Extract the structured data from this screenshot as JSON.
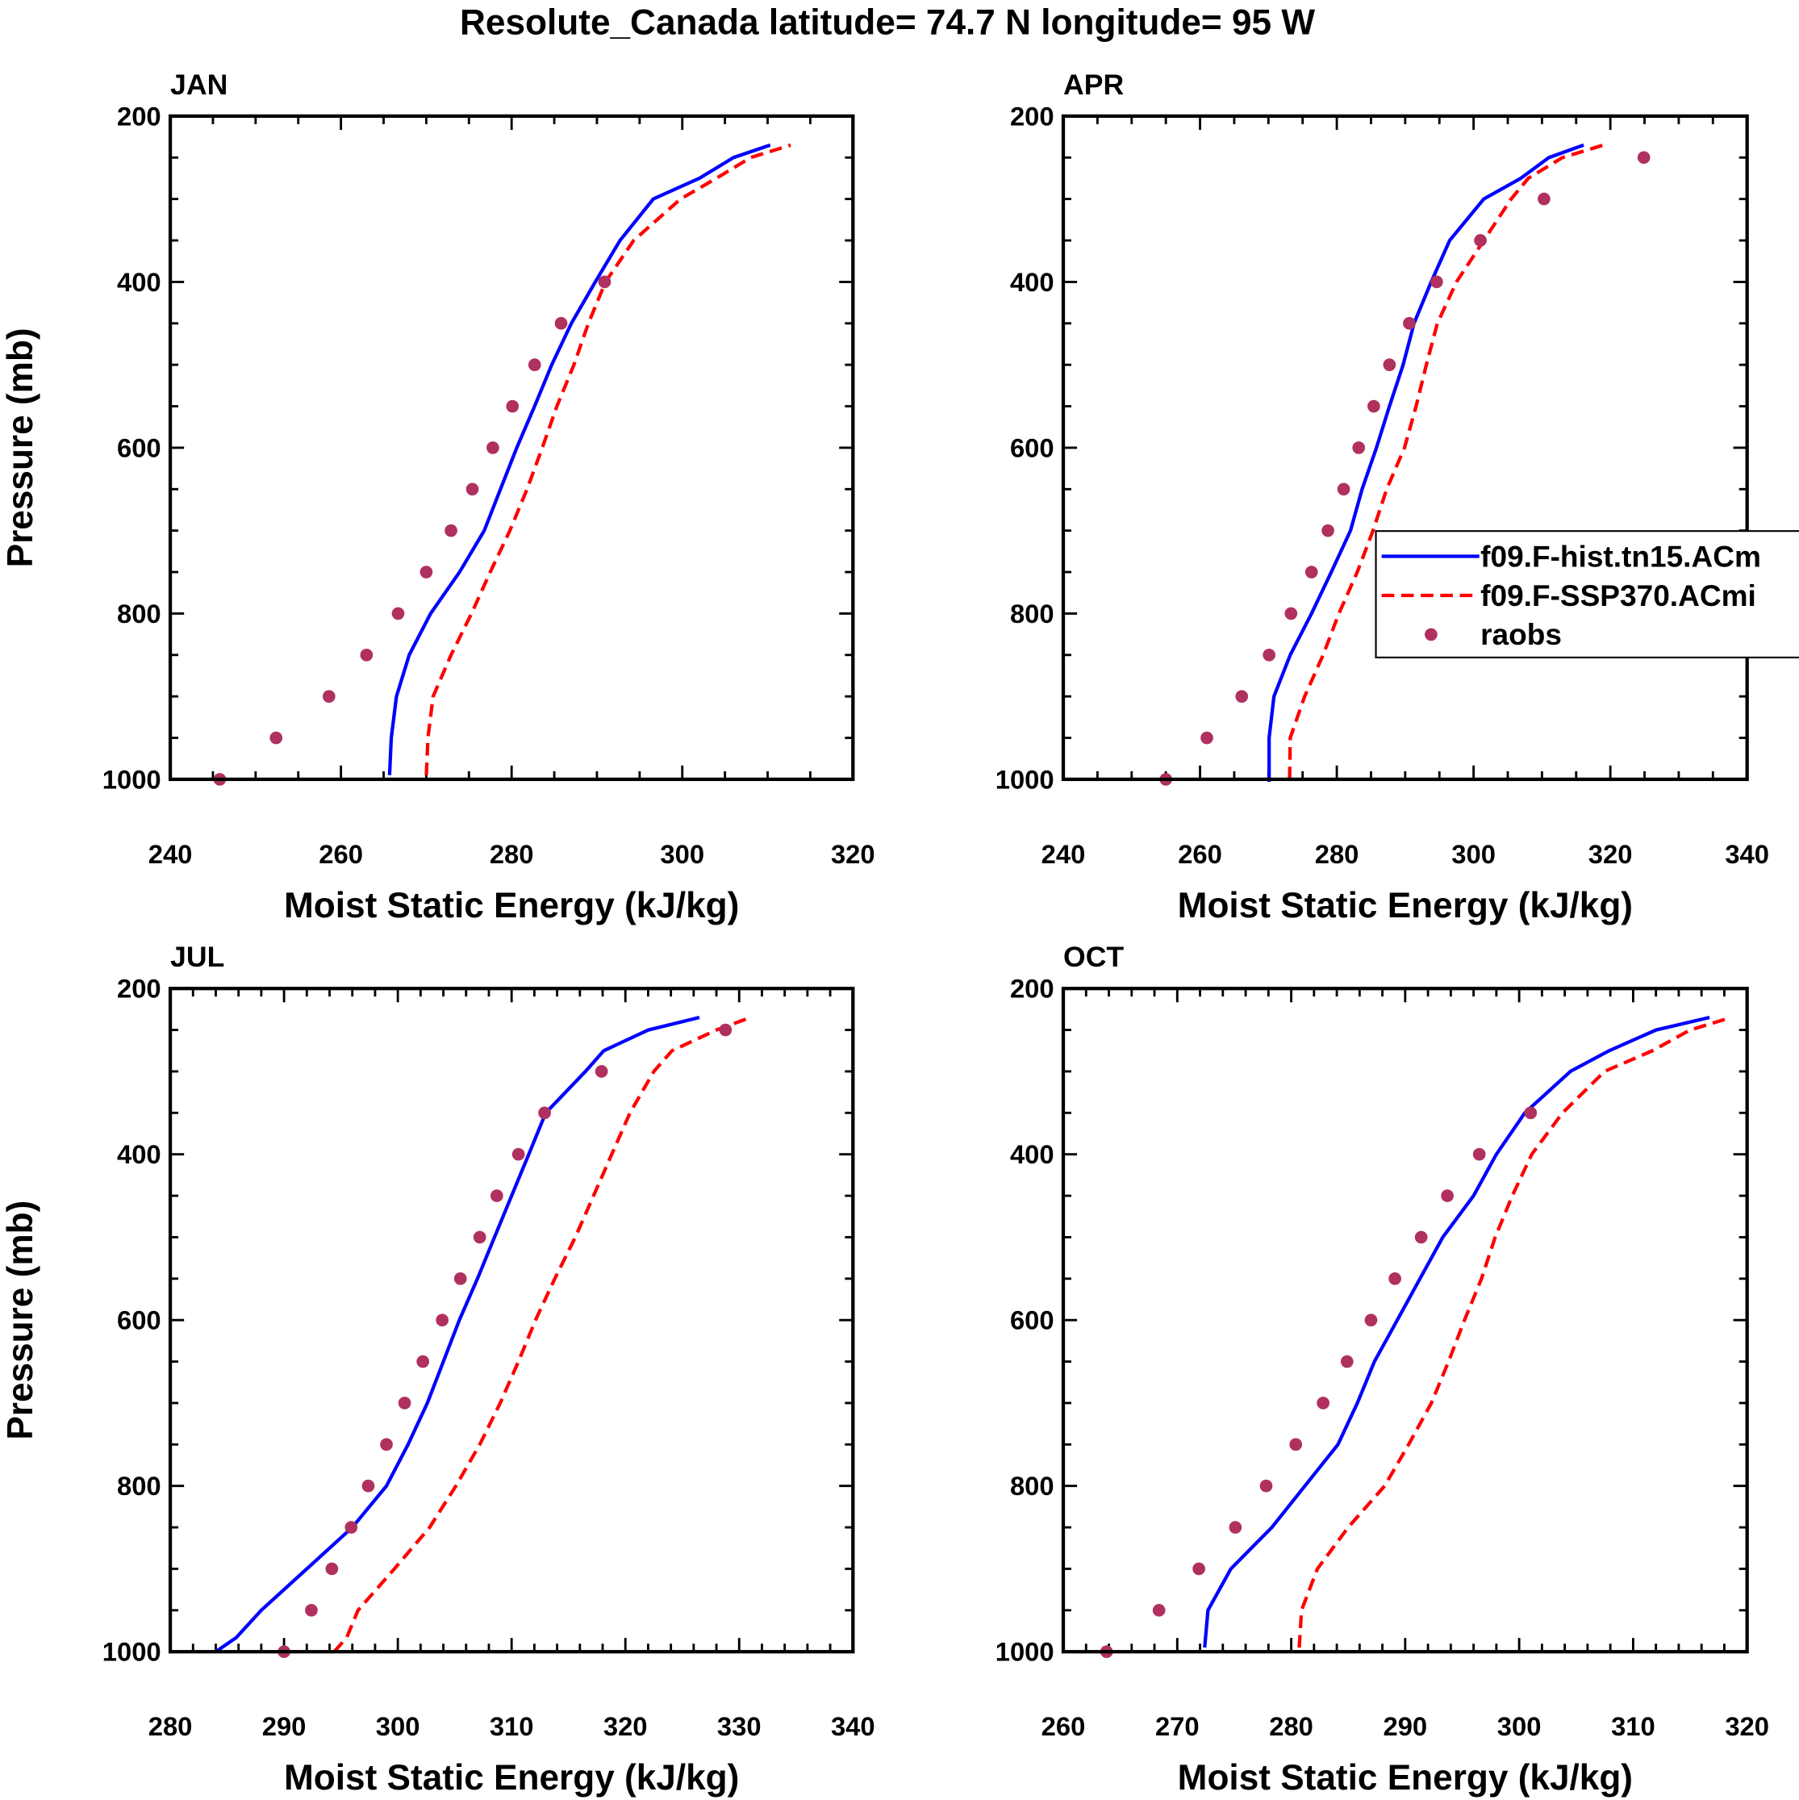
{
  "title": "Resolute_Canada  latitude= 74.7 N longitude= 95 W",
  "legend": {
    "placement": "right-middle of APR panel",
    "entries": [
      {
        "label": "f09.F-hist.tn15.ACm",
        "style": "solid",
        "color": "#0000ff"
      },
      {
        "label": "f09.F-SSP370.ACmi",
        "style": "dashed",
        "color": "#ff0000"
      },
      {
        "label": "raobs",
        "style": "marker",
        "color": "#b03060"
      }
    ]
  },
  "chart_data": [
    {
      "type": "line",
      "label": "JAN",
      "xlabel": "Moist Static Energy (kJ/kg)",
      "ylabel": "Pressure (mb)",
      "xlim": [
        240,
        320
      ],
      "ylim": [
        1000,
        200
      ],
      "xticks": [
        240,
        260,
        280,
        300,
        320
      ],
      "xminor": 5,
      "yticks": [
        200,
        400,
        600,
        800,
        1000
      ],
      "yminor": 50,
      "series": [
        {
          "name": "f09.F-hist.tn15.ACm",
          "color": "#0000ff",
          "style": "solid",
          "pressure": [
            995,
            950,
            900,
            850,
            800,
            750,
            700,
            650,
            600,
            550,
            500,
            450,
            400,
            350,
            300,
            275,
            250,
            235
          ],
          "mse": [
            265.7,
            265.9,
            266.5,
            268.0,
            270.5,
            273.9,
            276.8,
            278.7,
            280.6,
            282.7,
            284.7,
            287.0,
            289.8,
            292.7,
            296.6,
            302.0,
            306.0,
            310.3
          ]
        },
        {
          "name": "f09.F-SSP370.ACmi",
          "color": "#ff0000",
          "style": "dashed",
          "pressure": [
            995,
            950,
            900,
            850,
            800,
            750,
            700,
            650,
            600,
            550,
            500,
            450,
            400,
            350,
            300,
            275,
            250,
            235
          ],
          "mse": [
            270.0,
            270.2,
            270.8,
            272.9,
            275.3,
            277.5,
            279.8,
            281.8,
            283.6,
            285.3,
            287.3,
            289.0,
            291.0,
            294.3,
            299.8,
            304.0,
            308.0,
            312.7
          ]
        },
        {
          "name": "raobs",
          "color": "#b03060",
          "style": "marker",
          "pressure": [
            1000,
            950,
            900,
            850,
            800,
            750,
            700,
            650,
            600,
            550,
            500,
            450,
            400
          ],
          "mse": [
            245.8,
            252.4,
            258.6,
            263.0,
            266.7,
            270.0,
            272.9,
            275.4,
            277.8,
            280.1,
            282.7,
            285.8,
            290.9
          ]
        }
      ]
    },
    {
      "type": "line",
      "label": "APR",
      "xlabel": "Moist Static Energy (kJ/kg)",
      "ylabel": "",
      "xlim": [
        240,
        340
      ],
      "ylim": [
        1000,
        200
      ],
      "xticks": [
        240,
        260,
        280,
        300,
        320,
        340
      ],
      "xminor": 5,
      "yticks": [
        200,
        400,
        600,
        800,
        1000
      ],
      "yminor": 50,
      "series": [
        {
          "name": "f09.F-hist.tn15.ACm",
          "color": "#0000ff",
          "style": "solid",
          "pressure": [
            1003,
            950,
            900,
            850,
            800,
            750,
            700,
            650,
            600,
            550,
            500,
            450,
            400,
            350,
            300,
            275,
            250,
            235
          ],
          "mse": [
            270.1,
            270.1,
            270.8,
            273.2,
            276.3,
            279.2,
            282.0,
            283.7,
            285.8,
            287.7,
            289.7,
            291.3,
            293.8,
            296.5,
            301.5,
            306.9,
            311.0,
            316.1
          ]
        },
        {
          "name": "f09.F-SSP370.ACmi",
          "color": "#ff0000",
          "style": "dashed",
          "pressure": [
            1000,
            950,
            900,
            850,
            800,
            750,
            700,
            650,
            600,
            550,
            500,
            450,
            400,
            350,
            300,
            275,
            250,
            235
          ],
          "mse": [
            273.1,
            273.2,
            275.3,
            278.0,
            280.3,
            283.0,
            285.3,
            287.3,
            289.9,
            291.6,
            293.1,
            294.7,
            297.5,
            301.5,
            305.5,
            308.0,
            313.0,
            319.0
          ]
        },
        {
          "name": "raobs",
          "color": "#b03060",
          "style": "marker",
          "pressure": [
            1000,
            950,
            900,
            850,
            800,
            750,
            700,
            650,
            600,
            550,
            500,
            450,
            400,
            350,
            300,
            250
          ],
          "mse": [
            255.0,
            261.0,
            266.1,
            270.1,
            273.3,
            276.3,
            278.7,
            281.0,
            283.2,
            285.4,
            287.7,
            290.6,
            294.6,
            301.0,
            310.3,
            324.9
          ]
        }
      ]
    },
    {
      "type": "line",
      "label": "JUL",
      "xlabel": "Moist Static Energy (kJ/kg)",
      "ylabel": "Pressure (mb)",
      "xlim": [
        280,
        340
      ],
      "ylim": [
        1000,
        200
      ],
      "xticks": [
        280,
        290,
        300,
        310,
        320,
        330,
        340
      ],
      "xminor": 2,
      "yticks": [
        200,
        400,
        600,
        800,
        1000
      ],
      "yminor": 50,
      "series": [
        {
          "name": "f09.F-hist.tn15.ACm",
          "color": "#0000ff",
          "style": "solid",
          "pressure": [
            1000,
            983,
            950,
            900,
            850,
            800,
            750,
            700,
            650,
            600,
            550,
            500,
            450,
            400,
            350,
            300,
            275,
            250,
            235
          ],
          "mse": [
            284.0,
            285.8,
            288.0,
            292.0,
            296.0,
            299.0,
            300.9,
            302.6,
            304.0,
            305.4,
            307.0,
            308.5,
            310.0,
            311.5,
            313.0,
            316.5,
            318.1,
            322.0,
            326.5
          ]
        },
        {
          "name": "f09.F-SSP370.ACmi",
          "color": "#ff0000",
          "style": "dashed",
          "pressure": [
            1000,
            983,
            950,
            900,
            850,
            800,
            750,
            700,
            650,
            600,
            550,
            500,
            450,
            400,
            350,
            300,
            275,
            250,
            235
          ],
          "mse": [
            294.4,
            295.5,
            296.5,
            299.7,
            302.8,
            305.1,
            307.2,
            309.0,
            310.6,
            312.1,
            313.8,
            315.6,
            317.2,
            318.8,
            320.4,
            322.5,
            324.1,
            328.0,
            331.0
          ]
        },
        {
          "name": "raobs",
          "color": "#b03060",
          "style": "marker",
          "pressure": [
            1000,
            950,
            900,
            850,
            800,
            750,
            700,
            650,
            600,
            550,
            500,
            450,
            400,
            350,
            300,
            250
          ],
          "mse": [
            290.0,
            292.4,
            294.2,
            295.9,
            297.4,
            299.0,
            300.6,
            302.2,
            303.9,
            305.5,
            307.2,
            308.7,
            310.6,
            312.9,
            317.9,
            328.8
          ]
        }
      ]
    },
    {
      "type": "line",
      "label": "OCT",
      "xlabel": "Moist Static Energy (kJ/kg)",
      "ylabel": "",
      "xlim": [
        260,
        320
      ],
      "ylim": [
        1000,
        200
      ],
      "xticks": [
        260,
        270,
        280,
        290,
        300,
        310,
        320
      ],
      "xminor": 2,
      "yticks": [
        200,
        400,
        600,
        800,
        1000
      ],
      "yminor": 50,
      "series": [
        {
          "name": "f09.F-hist.tn15.ACm",
          "color": "#0000ff",
          "style": "solid",
          "pressure": [
            995,
            950,
            900,
            850,
            800,
            750,
            700,
            650,
            600,
            550,
            500,
            450,
            400,
            350,
            300,
            275,
            250,
            235
          ],
          "mse": [
            272.4,
            272.7,
            274.7,
            278.3,
            281.2,
            284.1,
            285.8,
            287.3,
            289.3,
            291.3,
            293.3,
            296.0,
            298.0,
            300.5,
            304.5,
            307.9,
            312.0,
            316.7
          ]
        },
        {
          "name": "f09.F-SSP370.ACmi",
          "color": "#ff0000",
          "style": "dashed",
          "pressure": [
            995,
            950,
            900,
            850,
            800,
            750,
            700,
            650,
            600,
            550,
            500,
            450,
            400,
            350,
            300,
            275,
            250,
            235
          ],
          "mse": [
            280.7,
            280.9,
            282.3,
            285.0,
            288.2,
            290.3,
            292.3,
            293.8,
            295.2,
            296.7,
            297.9,
            299.4,
            301.1,
            303.8,
            307.5,
            311.7,
            315.0,
            318.6
          ]
        },
        {
          "name": "raobs",
          "color": "#b03060",
          "style": "marker",
          "pressure": [
            1000,
            950,
            900,
            850,
            800,
            750,
            700,
            650,
            600,
            550,
            500,
            450,
            400,
            350
          ],
          "mse": [
            263.8,
            268.4,
            271.9,
            275.1,
            277.8,
            280.4,
            282.8,
            284.9,
            287.0,
            289.1,
            291.4,
            293.7,
            296.5,
            301.0
          ]
        }
      ]
    }
  ]
}
